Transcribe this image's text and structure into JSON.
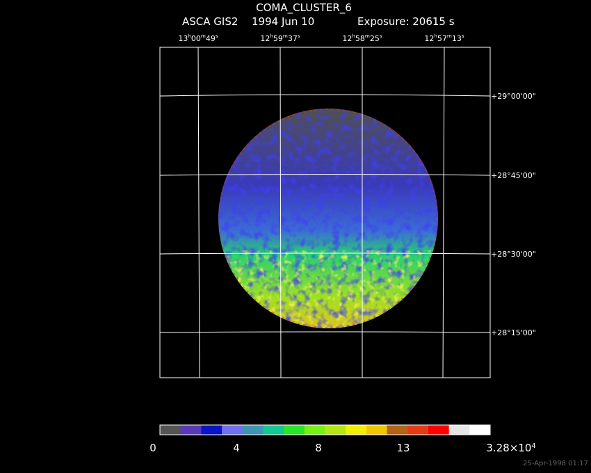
{
  "header": {
    "title": "COMA_CLUSTER_6",
    "instrument": "ASCA GIS2",
    "date": "1994 Jun 10",
    "exposure": "Exposure: 20615 s"
  },
  "ra_labels": [
    [
      "13",
      "h",
      "00",
      "m",
      "49",
      "s"
    ],
    [
      "12",
      "h",
      "59",
      "m",
      "37",
      "s"
    ],
    [
      "12",
      "h",
      "58",
      "m",
      "25",
      "s"
    ],
    [
      "12",
      "h",
      "57",
      "m",
      "13",
      "s"
    ]
  ],
  "dec_labels": [
    "+29°00'00\"",
    "+28°45'00\"",
    "+28°30'00\"",
    "+28°15'00\""
  ],
  "colorbar": {
    "colors": [
      "#555555",
      "#5a3aba",
      "#0a14c8",
      "#7070f0",
      "#3c96b4",
      "#14c896",
      "#28e628",
      "#78f014",
      "#b4e614",
      "#f0f000",
      "#f0c800",
      "#b46414",
      "#e63c14",
      "#ff0000",
      "#e6e6e6",
      "#ffffff"
    ],
    "labels": [
      [
        "0"
      ],
      [
        "4"
      ],
      [
        "8"
      ],
      [
        "13"
      ],
      [
        "3.28×10",
        "4"
      ]
    ]
  },
  "footer": "25-Apr-1998 01:17"
}
